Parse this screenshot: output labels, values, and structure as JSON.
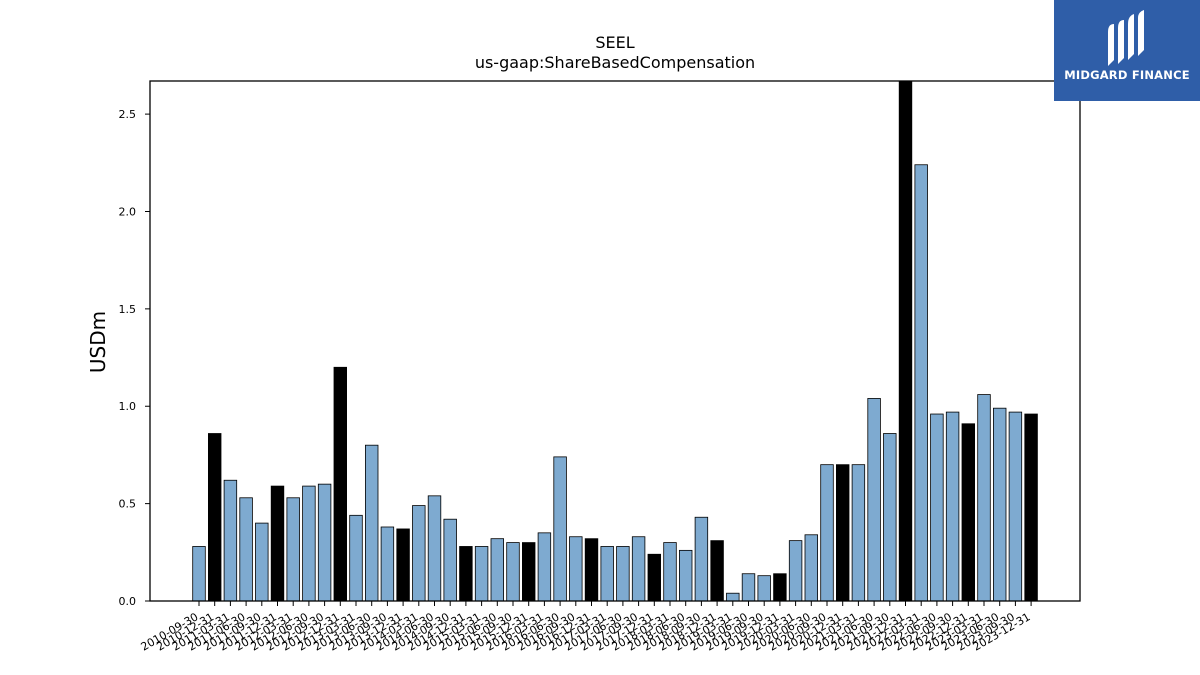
{
  "logo": {
    "text": "MIDGARD FINANCE",
    "background": "#2f5ea8"
  },
  "chart_data": {
    "type": "bar",
    "title": "SEEL",
    "subtitle": "us-gaap:ShareBasedCompensation",
    "ylabel": "USDm",
    "xlabel": "",
    "ylim": [
      0,
      2.67
    ],
    "yticks": [
      0.0,
      0.5,
      1.0,
      1.5,
      2.0,
      2.5
    ],
    "grid": false,
    "colors": {
      "quarter": "#7eaad0",
      "annual": "#000000",
      "edge": "#000000"
    },
    "categories": [
      "2010-09-30",
      "2010-12-31",
      "2011-03-31",
      "2011-06-30",
      "2011-09-30",
      "2011-12-31",
      "2012-03-31",
      "2012-06-30",
      "2012-09-30",
      "2012-12-31",
      "2013-03-31",
      "2013-06-30",
      "2013-09-30",
      "2013-12-31",
      "2014-03-31",
      "2014-06-30",
      "2014-09-30",
      "2014-12-31",
      "2015-03-31",
      "2015-06-30",
      "2015-09-30",
      "2015-12-31",
      "2016-03-31",
      "2016-06-30",
      "2016-09-30",
      "2016-12-31",
      "2017-03-31",
      "2017-06-30",
      "2017-09-30",
      "2017-12-31",
      "2018-03-31",
      "2018-06-30",
      "2018-09-30",
      "2018-12-31",
      "2019-03-31",
      "2019-06-30",
      "2019-09-30",
      "2019-12-31",
      "2020-03-31",
      "2020-06-30",
      "2020-09-30",
      "2020-12-31",
      "2021-03-31",
      "2021-06-30",
      "2021-09-30",
      "2021-12-31",
      "2022-03-31",
      "2022-06-30",
      "2022-09-30",
      "2022-12-31",
      "2023-03-31",
      "2023-06-30",
      "2023-09-30",
      "2023-12-31"
    ],
    "values": [
      0.28,
      0.86,
      0.62,
      0.53,
      0.4,
      0.59,
      0.53,
      0.59,
      0.6,
      1.2,
      0.44,
      0.8,
      0.38,
      0.37,
      0.49,
      0.54,
      0.42,
      0.28,
      0.28,
      0.32,
      0.3,
      0.3,
      0.35,
      0.74,
      0.33,
      0.32,
      0.28,
      0.28,
      0.33,
      0.24,
      0.3,
      0.26,
      0.43,
      0.31,
      0.04,
      0.14,
      0.13,
      0.14,
      0.31,
      0.34,
      0.7,
      0.7,
      0.7,
      1.04,
      0.86,
      2.67,
      2.24,
      0.96,
      0.97,
      0.91,
      1.06,
      0.99,
      0.97,
      0.96
    ],
    "annual_flags": [
      0,
      1,
      0,
      0,
      0,
      1,
      0,
      0,
      0,
      1,
      0,
      0,
      0,
      1,
      0,
      0,
      0,
      1,
      0,
      0,
      0,
      1,
      0,
      0,
      0,
      1,
      0,
      0,
      0,
      1,
      0,
      0,
      0,
      1,
      0,
      0,
      0,
      1,
      0,
      0,
      0,
      1,
      0,
      0,
      0,
      1,
      0,
      0,
      0,
      1,
      0,
      0,
      0,
      1
    ]
  }
}
